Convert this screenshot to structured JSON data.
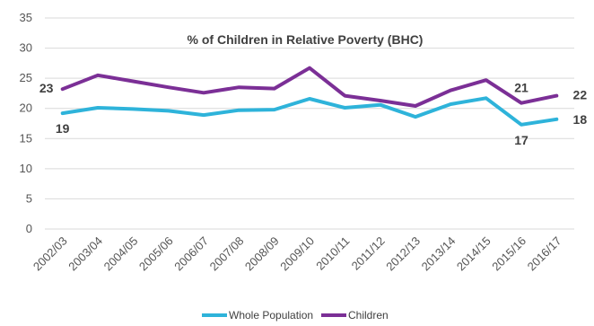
{
  "chart_data": {
    "type": "line",
    "title": "% of Children in Relative Poverty (BHC)",
    "xlabel": "",
    "ylabel": "",
    "ylim": [
      0,
      35
    ],
    "yticks": [
      "0",
      "5",
      "10",
      "15",
      "20",
      "25",
      "30",
      "35"
    ],
    "categories": [
      "2002/03",
      "2003/04",
      "2004/05",
      "2005/06",
      "2006/07",
      "2007/08",
      "2008/09",
      "2009/10",
      "2010/11",
      "2011/12",
      "2012/13",
      "2013/14",
      "2014/15",
      "2015/16",
      "2016/17"
    ],
    "grid": true,
    "legend_position": "bottom",
    "series": [
      {
        "name": "Whole Population",
        "color": "#2EB3DA",
        "values": [
          19.2,
          20.1,
          19.9,
          19.6,
          18.9,
          19.7,
          19.8,
          21.6,
          20.1,
          20.6,
          18.6,
          20.7,
          21.7,
          17.3,
          18.2
        ],
        "data_labels": [
          {
            "index": 0,
            "text": "19"
          },
          {
            "index": 13,
            "text": "17"
          },
          {
            "index": 14,
            "text": "18"
          }
        ]
      },
      {
        "name": "Children",
        "color": "#7B2F96",
        "values": [
          23.2,
          25.5,
          24.5,
          23.5,
          22.6,
          23.5,
          23.3,
          26.7,
          22.1,
          21.3,
          20.4,
          23.0,
          24.7,
          20.9,
          22.1
        ],
        "data_labels": [
          {
            "index": 0,
            "text": "23"
          },
          {
            "index": 13,
            "text": "21"
          },
          {
            "index": 14,
            "text": "22"
          }
        ]
      }
    ]
  }
}
